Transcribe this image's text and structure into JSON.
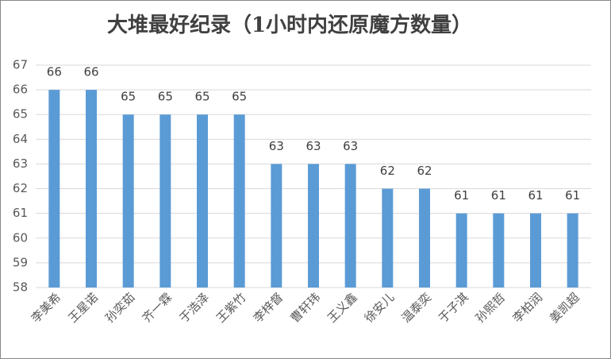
{
  "chart_data": {
    "type": "bar",
    "title": "大堆最好纪录（1小时内还原魔方数量）",
    "categories": [
      "李美希",
      "王星诺",
      "孙奕茹",
      "齐一霖",
      "于浩泽",
      "王紫竹",
      "李梓督",
      "曹轩玮",
      "王义鑫",
      "徐安儿",
      "温泰奕",
      "于子淇",
      "孙熙哲",
      "李柏润",
      "姜凯超"
    ],
    "values": [
      66,
      66,
      65,
      65,
      65,
      65,
      63,
      63,
      63,
      62,
      62,
      61,
      61,
      61,
      61
    ],
    "color": "#5b9bd5",
    "ylim": [
      58,
      67
    ],
    "yticks": [
      58,
      59,
      60,
      61,
      62,
      63,
      64,
      65,
      66,
      67
    ],
    "grid": true
  }
}
